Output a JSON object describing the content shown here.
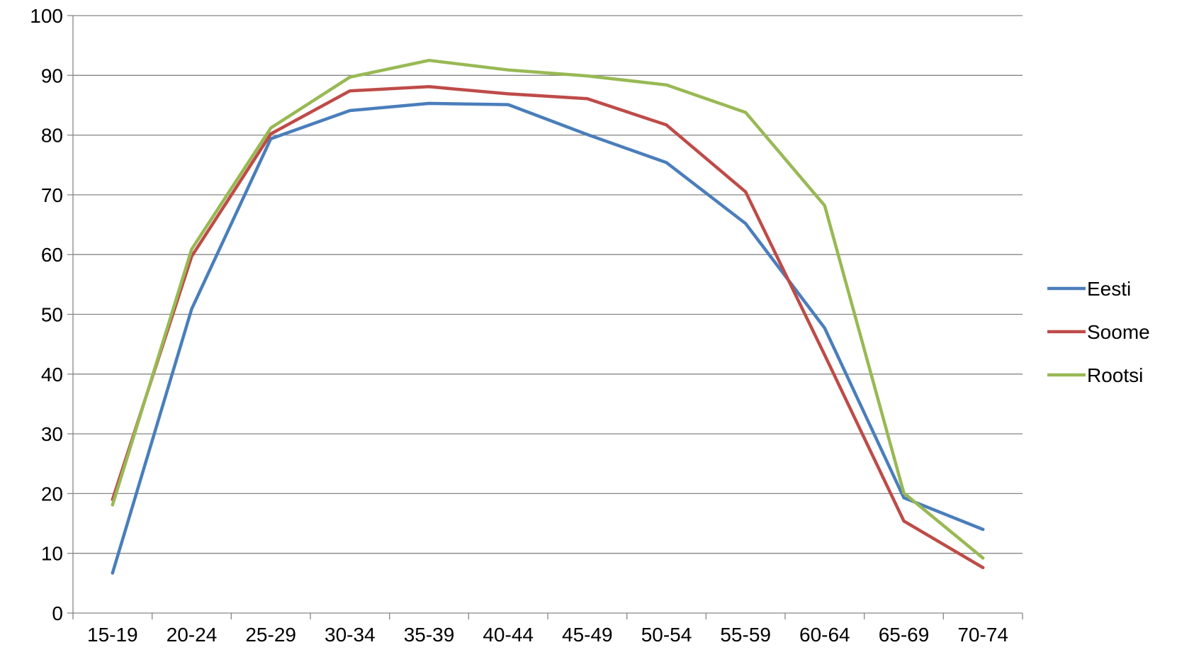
{
  "chart_data": {
    "type": "line",
    "categories": [
      "15-19",
      "20-24",
      "25-29",
      "30-34",
      "35-39",
      "40-44",
      "45-49",
      "50-54",
      "55-59",
      "60-64",
      "65-69",
      "70-74"
    ],
    "series": [
      {
        "name": "Eesti",
        "color": "#4a7ebb",
        "values": [
          6.7,
          50.9,
          79.4,
          84.1,
          85.3,
          85.1,
          80.1,
          75.4,
          65.2,
          47.7,
          19.3,
          14.0
        ]
      },
      {
        "name": "Soome",
        "color": "#be4b48",
        "values": [
          19.0,
          59.7,
          80.2,
          87.4,
          88.1,
          86.9,
          86.1,
          81.7,
          70.5,
          43.2,
          15.4,
          7.6
        ]
      },
      {
        "name": "Rootsi",
        "color": "#98b954",
        "values": [
          18.1,
          60.9,
          81.2,
          89.7,
          92.5,
          90.9,
          89.9,
          88.4,
          83.8,
          68.2,
          20.1,
          9.2
        ]
      }
    ],
    "ylim": [
      0,
      100
    ],
    "yticks": [
      "0",
      "10",
      "20",
      "30",
      "40",
      "50",
      "60",
      "70",
      "80",
      "90",
      "100"
    ],
    "grid": true,
    "legend_position": "right",
    "title": "",
    "xlabel": "",
    "ylabel": ""
  }
}
